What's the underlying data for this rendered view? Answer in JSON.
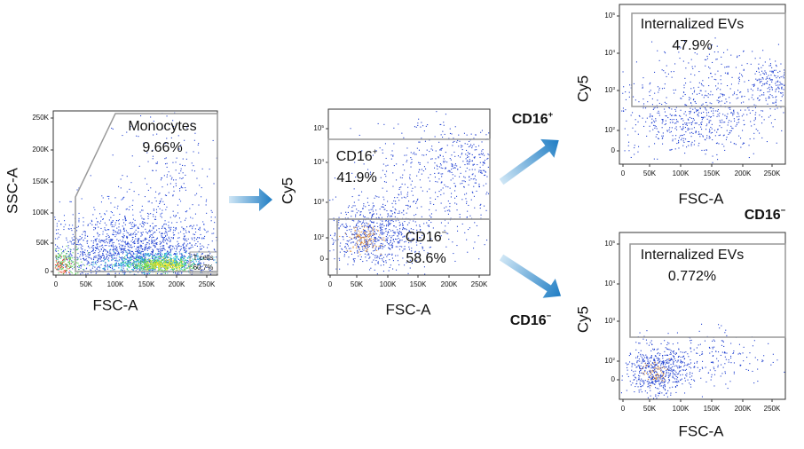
{
  "panels": [
    {
      "y_label": "SSC-A",
      "x_label": "FSC-A",
      "x_ticks": [
        "0",
        "50K",
        "100K",
        "150K",
        "200K",
        "250K"
      ],
      "y_ticks": [
        "0",
        "50K",
        "100K",
        "150K",
        "200K",
        "250K"
      ],
      "gates": [
        {
          "name": "Monocytes",
          "value": "9.66%"
        },
        {
          "name": "T cells",
          "value": "60.7%"
        }
      ]
    },
    {
      "y_label": "Cy5",
      "x_label": "FSC-A",
      "x_ticks": [
        "0",
        "50K",
        "100K",
        "150K",
        "200K",
        "250K"
      ],
      "y_ticks": [
        "0",
        {
          "base": "10",
          "exp": "2"
        },
        {
          "base": "10",
          "exp": "3"
        },
        {
          "base": "10",
          "exp": "4"
        },
        {
          "base": "10",
          "exp": "5"
        }
      ],
      "gates": [
        {
          "name": {
            "base": "CD16",
            "sup": "+"
          },
          "value": "41.9%"
        },
        {
          "name": {
            "base": "CD16",
            "sup": "−"
          },
          "value": "58.6%"
        }
      ]
    },
    {
      "y_label": "Cy5",
      "x_label": "FSC-A",
      "x_ticks": [
        "0",
        "50K",
        "100K",
        "150K",
        "200K",
        "250K"
      ],
      "y_ticks": [
        "0",
        {
          "base": "10",
          "exp": "2"
        },
        {
          "base": "10",
          "exp": "3"
        },
        {
          "base": "10",
          "exp": "4"
        },
        {
          "base": "10",
          "exp": "5"
        }
      ],
      "gates": [
        {
          "name": "Internalized EVs",
          "value": "47.9%"
        }
      ]
    },
    {
      "y_label": "Cy5",
      "x_label": "FSC-A",
      "x_ticks": [
        "0",
        "50K",
        "100K",
        "150K",
        "200K",
        "250K"
      ],
      "y_ticks": [
        "0",
        {
          "base": "10",
          "exp": "2"
        },
        {
          "base": "10",
          "exp": "3"
        },
        {
          "base": "10",
          "exp": "4"
        },
        {
          "base": "10",
          "exp": "5"
        }
      ],
      "gates": [
        {
          "name": "Internalized EVs",
          "value": "0.772%"
        }
      ]
    }
  ],
  "branches": [
    {
      "base": "CD16",
      "sup": "+"
    },
    {
      "base": "CD16",
      "sup": "−"
    }
  ],
  "lower_panel_label": {
    "base": "CD16",
    "sup": "−"
  }
}
